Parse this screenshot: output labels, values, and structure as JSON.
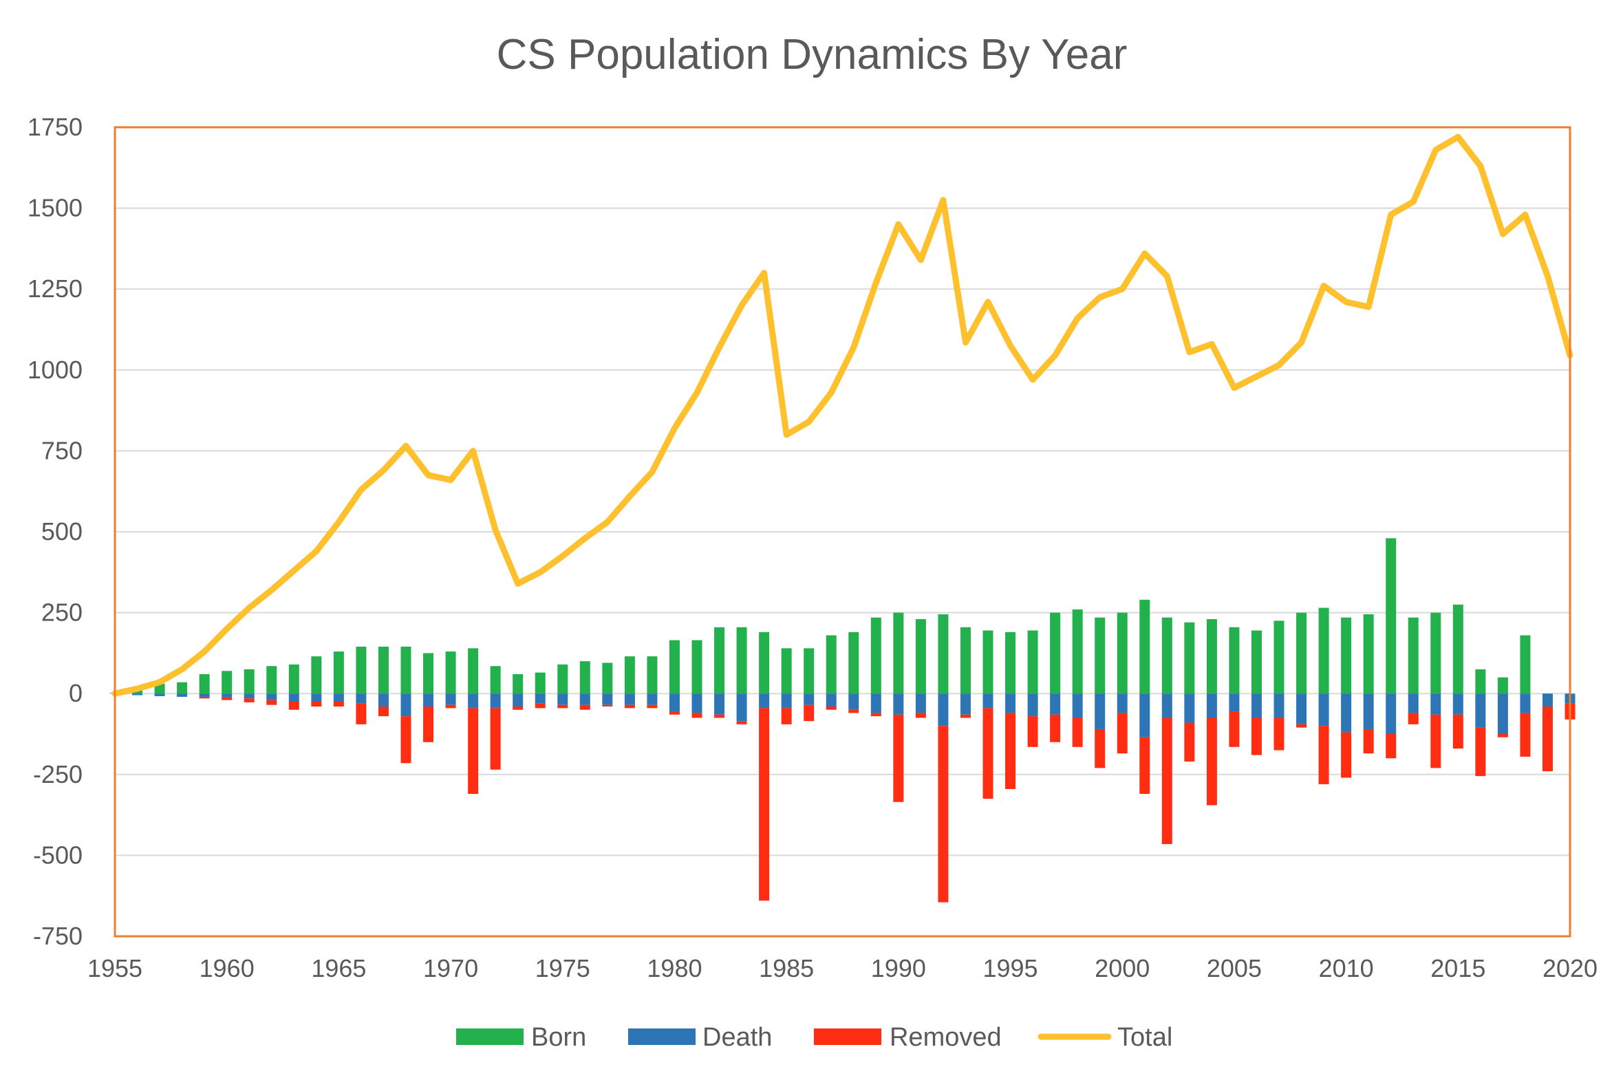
{
  "chart_data": {
    "type": "bar",
    "title": "CS Population Dynamics By Year",
    "xlabel": "",
    "ylabel": "",
    "ylim": [
      -750,
      1750
    ],
    "yticks": [
      1750,
      1500,
      1250,
      1000,
      750,
      500,
      250,
      0,
      -250,
      -500,
      -750
    ],
    "xticks": [
      1955,
      1960,
      1965,
      1970,
      1975,
      1980,
      1985,
      1990,
      1995,
      2000,
      2005,
      2010,
      2015,
      2020
    ],
    "grid": true,
    "legend_position": "bottom",
    "x": [
      1955,
      1956,
      1957,
      1958,
      1959,
      1960,
      1961,
      1962,
      1963,
      1964,
      1965,
      1966,
      1967,
      1968,
      1969,
      1970,
      1971,
      1972,
      1973,
      1974,
      1975,
      1976,
      1977,
      1978,
      1979,
      1980,
      1981,
      1982,
      1983,
      1984,
      1985,
      1986,
      1987,
      1988,
      1989,
      1990,
      1991,
      1992,
      1993,
      1994,
      1995,
      1996,
      1997,
      1998,
      1999,
      2000,
      2001,
      2002,
      2003,
      2004,
      2005,
      2006,
      2007,
      2008,
      2009,
      2010,
      2011,
      2012,
      2013,
      2014,
      2015,
      2016,
      2017,
      2018,
      2019,
      2020
    ],
    "series": [
      {
        "name": "Born",
        "kind": "bar",
        "color": "#22B14C",
        "values": [
          2,
          10,
          30,
          35,
          60,
          70,
          75,
          85,
          90,
          115,
          130,
          145,
          145,
          145,
          125,
          130,
          140,
          85,
          60,
          65,
          90,
          100,
          95,
          115,
          115,
          165,
          165,
          205,
          205,
          190,
          140,
          140,
          180,
          190,
          235,
          250,
          230,
          245,
          205,
          195,
          190,
          195,
          250,
          260,
          235,
          250,
          290,
          235,
          220,
          230,
          205,
          195,
          225,
          250,
          265,
          235,
          245,
          480,
          235,
          250,
          275,
          75,
          50,
          180,
          0,
          0
        ]
      },
      {
        "name": "Death",
        "kind": "bar",
        "color": "#2E75B6",
        "values": [
          0,
          -5,
          -8,
          -10,
          -10,
          -12,
          -15,
          -20,
          -25,
          -25,
          -25,
          -30,
          -40,
          -70,
          -40,
          -35,
          -45,
          -45,
          -40,
          -30,
          -35,
          -35,
          -35,
          -35,
          -35,
          -55,
          -60,
          -65,
          -85,
          -45,
          -45,
          -35,
          -40,
          -50,
          -60,
          -65,
          -60,
          -100,
          -65,
          -45,
          -60,
          -70,
          -65,
          -75,
          -110,
          -60,
          -135,
          -75,
          -90,
          -75,
          -55,
          -75,
          -75,
          -95,
          -100,
          -120,
          -110,
          -125,
          -60,
          -65,
          -65,
          -105,
          -125,
          -60,
          -40,
          -30
        ]
      },
      {
        "name": "Removed",
        "kind": "bar",
        "color": "#FF2E12",
        "values": [
          0,
          0,
          0,
          0,
          -5,
          -8,
          -12,
          -15,
          -25,
          -15,
          -15,
          -65,
          -30,
          -145,
          -110,
          -10,
          -265,
          -190,
          -10,
          -15,
          -10,
          -15,
          -5,
          -10,
          -10,
          -10,
          -15,
          -10,
          -10,
          -595,
          -50,
          -50,
          -10,
          -10,
          -10,
          -270,
          -15,
          -545,
          -10,
          -280,
          -235,
          -95,
          -85,
          -90,
          -120,
          -125,
          -175,
          -390,
          -120,
          -270,
          -110,
          -115,
          -100,
          -10,
          -180,
          -140,
          -75,
          -75,
          -35,
          -165,
          -105,
          -150,
          -10,
          -135,
          -200,
          -50
        ]
      },
      {
        "name": "Total",
        "kind": "line",
        "color": "#FFC02E",
        "values": [
          0,
          15,
          35,
          75,
          130,
          200,
          265,
          320,
          380,
          440,
          530,
          630,
          690,
          765,
          675,
          660,
          750,
          505,
          340,
          375,
          425,
          480,
          530,
          610,
          685,
          820,
          930,
          1070,
          1200,
          1300,
          800,
          840,
          930,
          1070,
          1270,
          1450,
          1340,
          1525,
          1085,
          1210,
          1075,
          970,
          1045,
          1160,
          1225,
          1250,
          1360,
          1290,
          1055,
          1080,
          945,
          980,
          1015,
          1085,
          1260,
          1210,
          1195,
          1480,
          1520,
          1680,
          1720,
          1630,
          1420,
          1480,
          1290,
          1045
        ]
      }
    ]
  }
}
